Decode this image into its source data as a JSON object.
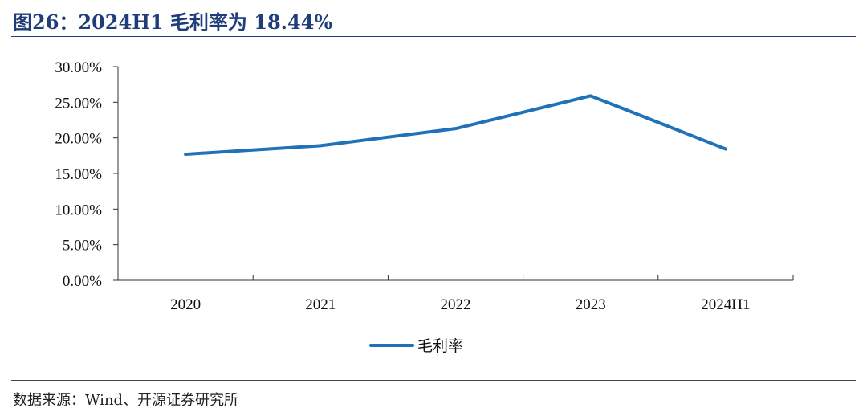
{
  "header": {
    "title": "图26：2024H1 毛利率为 18.44%"
  },
  "chart_data": {
    "type": "line",
    "categories": [
      "2020",
      "2021",
      "2022",
      "2023",
      "2024H1"
    ],
    "series": [
      {
        "name": "毛利率",
        "values": [
          17.7,
          18.9,
          21.3,
          25.9,
          18.44
        ],
        "color": "#1f72b8"
      }
    ],
    "ylim": [
      0,
      30
    ],
    "yticks": [
      "0.00%",
      "5.00%",
      "10.00%",
      "15.00%",
      "20.00%",
      "25.00%",
      "30.00%"
    ],
    "xlabel": "",
    "ylabel": "",
    "grid": false,
    "legend": "bottom-center"
  },
  "footer": {
    "source": "数据来源：Wind、开源证券研究所"
  }
}
